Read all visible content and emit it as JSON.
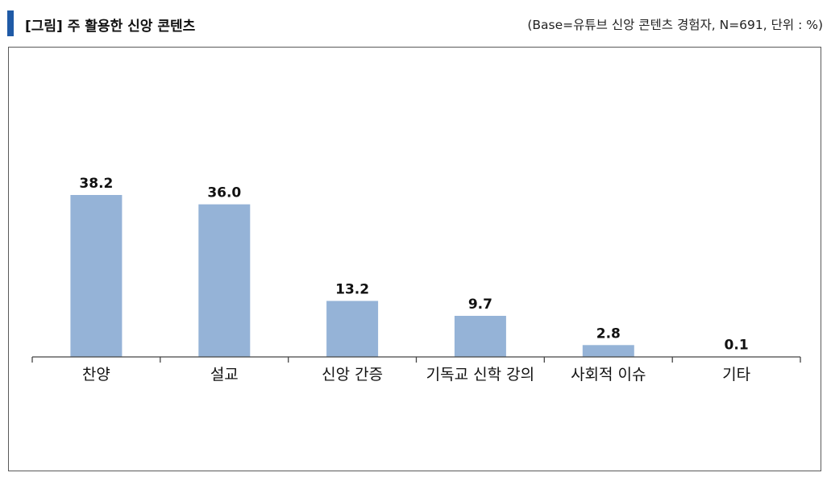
{
  "header": {
    "title": "[그림] 주 활용한 신앙 콘텐츠",
    "base_note": "(Base=유튜브 신앙 콘텐츠 경험자, N=691, 단위 : %)"
  },
  "colors": {
    "accent": "#1f5aa6",
    "bar": "#95b3d7",
    "axis": "#444444"
  },
  "chart_data": {
    "type": "bar",
    "categories": [
      "찬양",
      "설교",
      "신앙 간증",
      "기독교 신학 강의",
      "사회적 이슈",
      "기타"
    ],
    "values": [
      38.2,
      36.0,
      13.2,
      9.7,
      2.8,
      0.1
    ],
    "value_labels": [
      "38.2",
      "36.0",
      "13.2",
      "9.7",
      "2.8",
      "0.1"
    ],
    "title": "",
    "xlabel": "",
    "ylabel": "",
    "ylim": [
      0,
      45
    ],
    "grid": false,
    "legend": "none"
  }
}
